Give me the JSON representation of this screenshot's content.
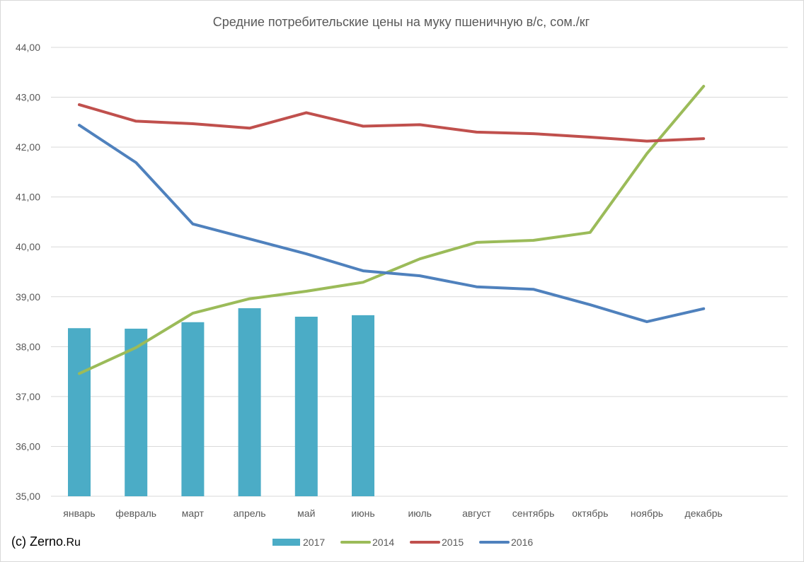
{
  "chart_data": {
    "type": "bar+line",
    "title": "Средние потребительские цены на муку пшеничную в/с, сом./кг",
    "categories": [
      "январь",
      "февраль",
      "март",
      "апрель",
      "май",
      "июнь",
      "июль",
      "август",
      "сентябрь",
      "октябрь",
      "ноябрь",
      "декабрь"
    ],
    "ylim": [
      35,
      44
    ],
    "yticks": [
      "35,00",
      "36,00",
      "37,00",
      "38,00",
      "39,00",
      "40,00",
      "41,00",
      "42,00",
      "43,00",
      "44,00"
    ],
    "grid": true,
    "legend_position": "bottom",
    "bar_series": [
      {
        "name": "2017",
        "color": "#4bacc6",
        "values": [
          38.37,
          38.36,
          38.49,
          38.77,
          38.6,
          38.63,
          null,
          null,
          null,
          null,
          null,
          null
        ]
      }
    ],
    "line_series": [
      {
        "name": "2014",
        "color": "#9bbb59",
        "values": [
          37.46,
          37.98,
          38.67,
          38.96,
          39.11,
          39.29,
          39.76,
          40.09,
          40.13,
          40.29,
          41.87,
          43.22
        ]
      },
      {
        "name": "2015",
        "color": "#c0504d",
        "values": [
          42.85,
          42.52,
          42.47,
          42.38,
          42.69,
          42.42,
          42.45,
          42.3,
          42.27,
          42.2,
          42.12,
          42.17
        ]
      },
      {
        "name": "2016",
        "color": "#4f81bd",
        "values": [
          42.44,
          41.69,
          40.46,
          40.16,
          39.86,
          39.52,
          39.42,
          39.2,
          39.15,
          38.84,
          38.5,
          38.76
        ]
      }
    ]
  },
  "credit": {
    "prefix": "(c) Zerno",
    "suffix": ".Ru"
  }
}
